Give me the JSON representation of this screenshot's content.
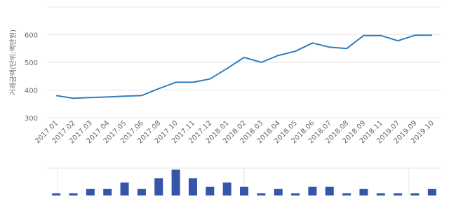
{
  "chart_data": [
    {
      "type": "line",
      "y_label": "거래금액(단위:백만원)",
      "categories": [
        "2017.01",
        "2017.02",
        "2017.03",
        "2017.04",
        "2017.05",
        "2017.06",
        "2017.08",
        "2017.10",
        "2017.11",
        "2017.12",
        "2018.01",
        "2018.02",
        "2018.03",
        "2018.04",
        "2018.05",
        "2018.06",
        "2018.07",
        "2018.08",
        "2018.09",
        "2018.11",
        "2019.07",
        "2019.09",
        "2019.10"
      ],
      "values": [
        380,
        370,
        373,
        375,
        378,
        380,
        405,
        428,
        428,
        440,
        478,
        518,
        500,
        525,
        540,
        570,
        555,
        550,
        597,
        597,
        578,
        598,
        598
      ],
      "color": "#2e7dbf",
      "ylim": [
        300,
        700
      ],
      "yticks": [
        300,
        400,
        500,
        600
      ],
      "grid": true
    },
    {
      "type": "bar",
      "values": [
        1,
        1,
        3,
        3,
        6,
        3,
        8,
        12,
        8,
        4,
        6,
        4,
        1,
        3,
        1,
        4,
        4,
        1,
        3,
        1,
        1,
        1,
        3
      ],
      "color": "#3455a8"
    }
  ]
}
